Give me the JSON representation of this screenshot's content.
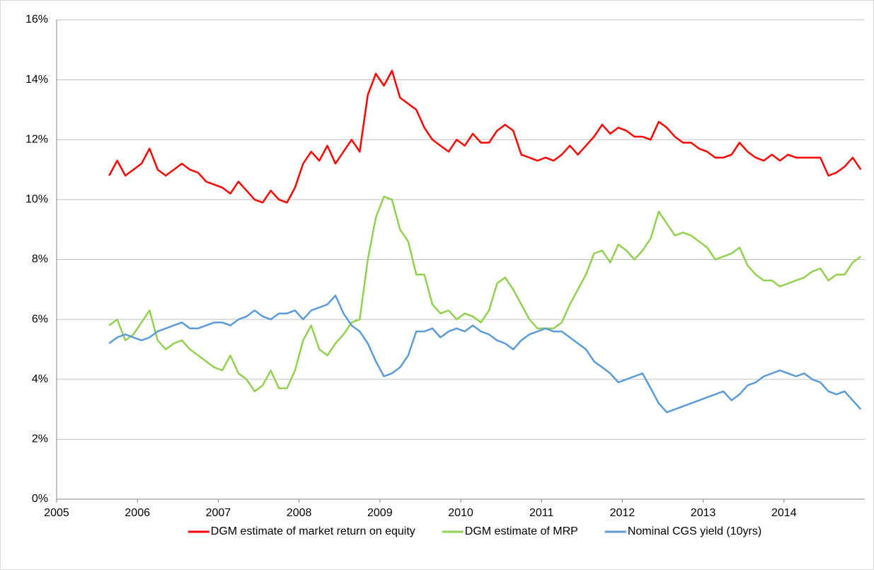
{
  "chart_data": {
    "type": "line",
    "x": [
      2005.65,
      2005.75,
      2005.85,
      2005.95,
      2006.05,
      2006.15,
      2006.25,
      2006.35,
      2006.45,
      2006.55,
      2006.65,
      2006.75,
      2006.85,
      2006.95,
      2007.05,
      2007.15,
      2007.25,
      2007.35,
      2007.45,
      2007.55,
      2007.65,
      2007.75,
      2007.85,
      2007.95,
      2008.05,
      2008.15,
      2008.25,
      2008.35,
      2008.45,
      2008.55,
      2008.65,
      2008.75,
      2008.85,
      2008.95,
      2009.05,
      2009.15,
      2009.25,
      2009.35,
      2009.45,
      2009.55,
      2009.65,
      2009.75,
      2009.85,
      2009.95,
      2010.05,
      2010.15,
      2010.25,
      2010.35,
      2010.45,
      2010.55,
      2010.65,
      2010.75,
      2010.85,
      2010.95,
      2011.05,
      2011.15,
      2011.25,
      2011.35,
      2011.45,
      2011.55,
      2011.65,
      2011.75,
      2011.85,
      2011.95,
      2012.05,
      2012.15,
      2012.25,
      2012.35,
      2012.45,
      2012.55,
      2012.65,
      2012.75,
      2012.85,
      2012.95,
      2013.05,
      2013.15,
      2013.25,
      2013.35,
      2013.45,
      2013.55,
      2013.65,
      2013.75,
      2013.85,
      2013.95,
      2014.05,
      2014.15,
      2014.25,
      2014.35,
      2014.45,
      2014.55,
      2014.65,
      2014.75,
      2014.85,
      2014.95
    ],
    "series": [
      {
        "name": "DGM estimate of market return on equity",
        "color": "#ff0000",
        "values": [
          10.8,
          11.3,
          10.8,
          11.0,
          11.2,
          11.7,
          11.0,
          10.8,
          11.0,
          11.2,
          11.0,
          10.9,
          10.6,
          10.5,
          10.4,
          10.2,
          10.6,
          10.3,
          10.0,
          9.9,
          10.3,
          10.0,
          9.9,
          10.4,
          11.2,
          11.6,
          11.3,
          11.8,
          11.2,
          11.6,
          12.0,
          11.6,
          13.5,
          14.2,
          13.8,
          14.3,
          13.4,
          13.2,
          13.0,
          12.4,
          12.0,
          11.8,
          11.6,
          12.0,
          11.8,
          12.2,
          11.9,
          11.9,
          12.3,
          12.5,
          12.3,
          11.5,
          11.4,
          11.3,
          11.4,
          11.3,
          11.5,
          11.8,
          11.5,
          11.8,
          12.1,
          12.5,
          12.2,
          12.4,
          12.3,
          12.1,
          12.1,
          12.0,
          12.6,
          12.4,
          12.1,
          11.9,
          11.9,
          11.7,
          11.6,
          11.4,
          11.4,
          11.5,
          11.9,
          11.6,
          11.4,
          11.3,
          11.5,
          11.3,
          11.5,
          11.4,
          11.4,
          11.4,
          11.4,
          10.8,
          10.9,
          11.1,
          11.4,
          11.0
        ]
      },
      {
        "name": "DGM estimate of MRP",
        "color": "#92d050",
        "values": [
          5.8,
          6.0,
          5.3,
          5.5,
          5.9,
          6.3,
          5.3,
          5.0,
          5.2,
          5.3,
          5.0,
          4.8,
          4.6,
          4.4,
          4.3,
          4.8,
          4.2,
          4.0,
          3.6,
          3.8,
          4.3,
          3.7,
          3.7,
          4.3,
          5.3,
          5.8,
          5.0,
          4.8,
          5.2,
          5.5,
          5.9,
          6.0,
          8.0,
          9.4,
          10.1,
          10.0,
          9.0,
          8.6,
          7.5,
          7.5,
          6.5,
          6.2,
          6.3,
          6.0,
          6.2,
          6.1,
          5.9,
          6.3,
          7.2,
          7.4,
          7.0,
          6.5,
          6.0,
          5.7,
          5.7,
          5.7,
          5.9,
          6.5,
          7.0,
          7.5,
          8.2,
          8.3,
          7.9,
          8.5,
          8.3,
          8.0,
          8.3,
          8.7,
          9.6,
          9.2,
          8.8,
          8.9,
          8.8,
          8.6,
          8.4,
          8.0,
          8.1,
          8.2,
          8.4,
          7.8,
          7.5,
          7.3,
          7.3,
          7.1,
          7.2,
          7.3,
          7.4,
          7.6,
          7.7,
          7.3,
          7.5,
          7.5,
          7.9,
          8.1
        ]
      },
      {
        "name": "Nominal CGS yield (10yrs)",
        "color": "#5b9bd5",
        "values": [
          5.2,
          5.4,
          5.5,
          5.4,
          5.3,
          5.4,
          5.6,
          5.7,
          5.8,
          5.9,
          5.7,
          5.7,
          5.8,
          5.9,
          5.9,
          5.8,
          6.0,
          6.1,
          6.3,
          6.1,
          6.0,
          6.2,
          6.2,
          6.3,
          6.0,
          6.3,
          6.4,
          6.5,
          6.8,
          6.2,
          5.8,
          5.6,
          5.2,
          4.6,
          4.1,
          4.2,
          4.4,
          4.8,
          5.6,
          5.6,
          5.7,
          5.4,
          5.6,
          5.7,
          5.6,
          5.8,
          5.6,
          5.5,
          5.3,
          5.2,
          5.0,
          5.3,
          5.5,
          5.6,
          5.7,
          5.6,
          5.6,
          5.4,
          5.2,
          5.0,
          4.6,
          4.4,
          4.2,
          3.9,
          4.0,
          4.1,
          4.2,
          3.7,
          3.2,
          2.9,
          3.0,
          3.1,
          3.2,
          3.3,
          3.4,
          3.5,
          3.6,
          3.3,
          3.5,
          3.8,
          3.9,
          4.1,
          4.2,
          4.3,
          4.2,
          4.1,
          4.2,
          4.0,
          3.9,
          3.6,
          3.5,
          3.6,
          3.3,
          3.0
        ]
      }
    ],
    "xlim": [
      2005,
      2015
    ],
    "xticks": [
      2005,
      2006,
      2007,
      2008,
      2009,
      2010,
      2011,
      2012,
      2013,
      2014
    ],
    "ylim": [
      0,
      16
    ],
    "yticks": [
      {
        "value": 0,
        "label": "0%"
      },
      {
        "value": 2,
        "label": "2%"
      },
      {
        "value": 4,
        "label": "4%"
      },
      {
        "value": 6,
        "label": "6%"
      },
      {
        "value": 8,
        "label": "8%"
      },
      {
        "value": 10,
        "label": "10%"
      },
      {
        "value": 12,
        "label": "12%"
      },
      {
        "value": 14,
        "label": "14%"
      },
      {
        "value": 16,
        "label": "16%"
      }
    ],
    "grid": true,
    "legend": "bottom"
  }
}
